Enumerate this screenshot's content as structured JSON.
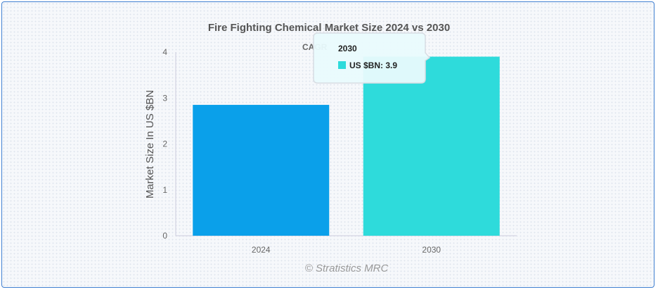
{
  "chart_data": {
    "type": "bar",
    "title": "Fire Fighting Chemical Market Size 2024 vs 2030",
    "subtitle": "CAGR",
    "categories": [
      "2024",
      "2030"
    ],
    "series": [
      {
        "name": "US $BN",
        "values": [
          2.85,
          3.9
        ]
      }
    ],
    "bar_colors": [
      "#0aa0ea",
      "#2edbdb"
    ],
    "xlabel": "",
    "ylabel": "Market Size In US $BN",
    "ylim": [
      0,
      4
    ],
    "yticks": [
      "0",
      "1",
      "2",
      "3",
      "4"
    ],
    "grid": false,
    "credit": "© Stratistics MRC",
    "tooltip": {
      "title": "2030",
      "label": "US $BN: 3.9",
      "color": "#2edbdb"
    }
  }
}
